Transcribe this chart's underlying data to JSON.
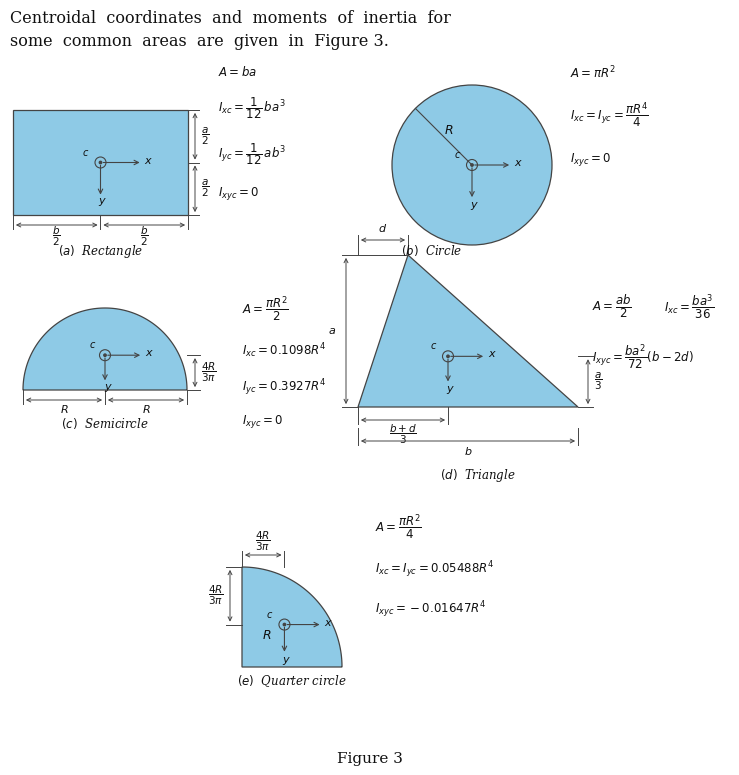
{
  "bg_color": "#ffffff",
  "shape_fill": "#8ECAE6",
  "shape_edge": "#444444",
  "text_color": "#111111",
  "dim_color": "#444444",
  "title_line1": "Centroidal  coordinates  and  moments  of  inertia  for",
  "title_line2": "some  common  areas  are  given  in  Figure 3.",
  "figure_label": "Figure 3"
}
